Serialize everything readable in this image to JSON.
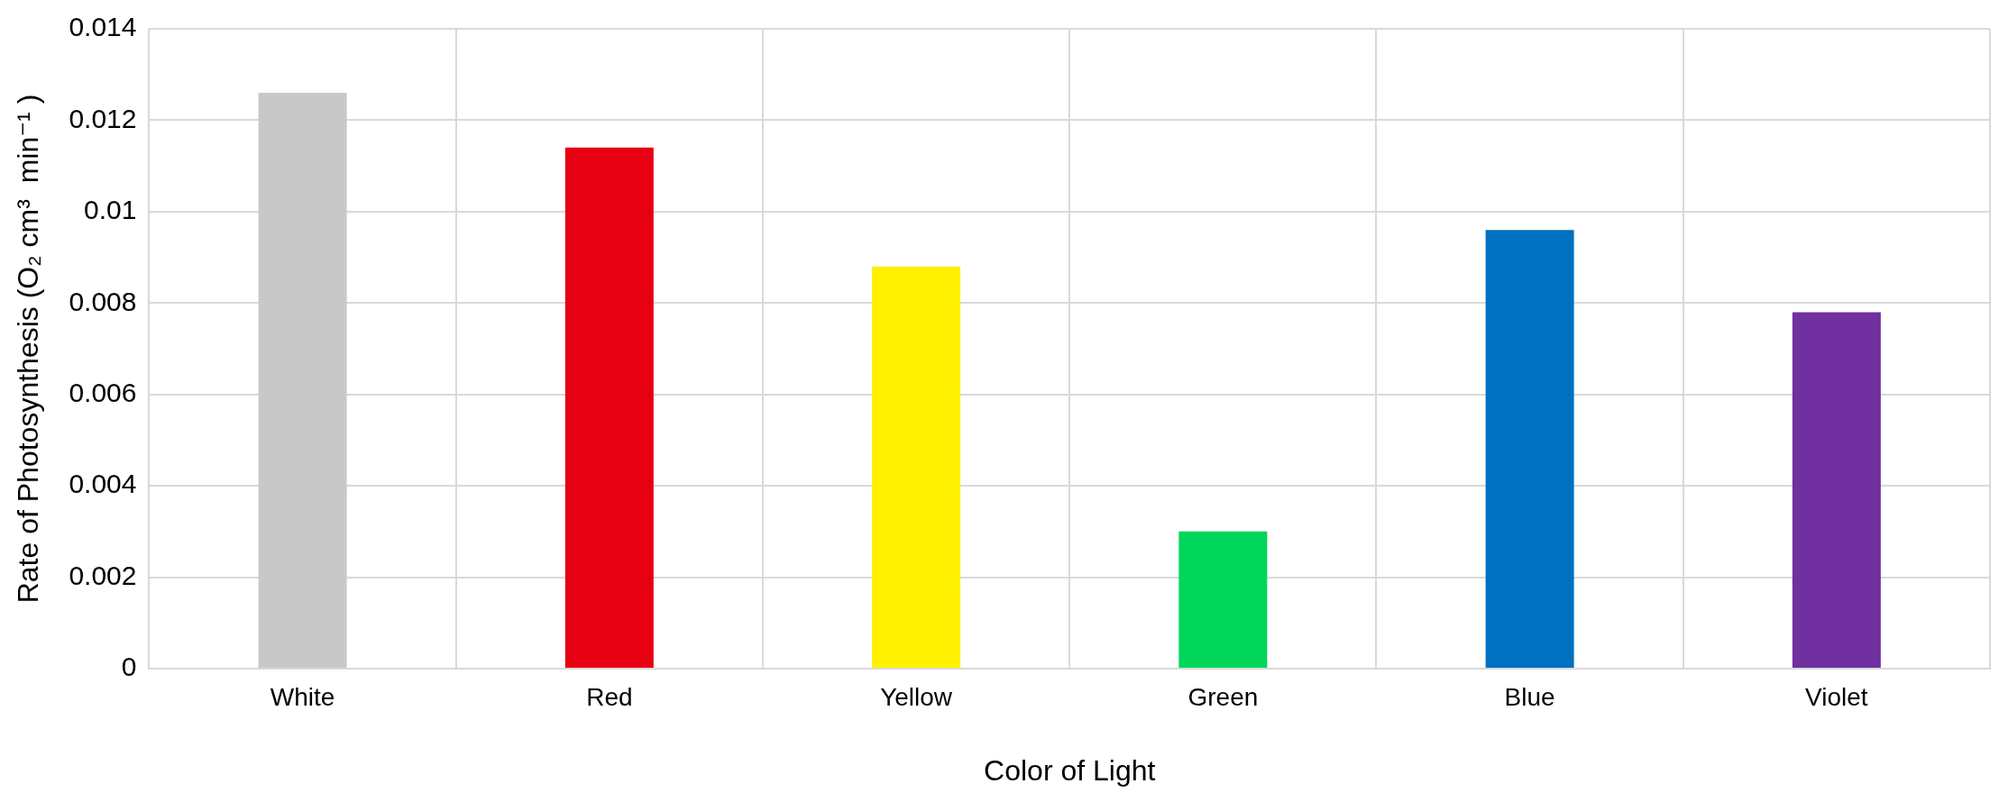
{
  "chart_data": {
    "type": "bar",
    "xlabel": "Color of Light",
    "ylabel": "Rate of Photosynthesis (O₂ cm³  min⁻¹ )",
    "categories": [
      "White",
      "Red",
      "Yellow",
      "Green",
      "Blue",
      "Violet"
    ],
    "values": [
      0.0126,
      0.0114,
      0.0088,
      0.003,
      0.0096,
      0.0078
    ],
    "colors": [
      "#c8c8c8",
      "#e60012",
      "#fff100",
      "#00d65a",
      "#0070c0",
      "#7030a0"
    ],
    "ylim": [
      0,
      0.014
    ],
    "yticks": [
      0,
      0.002,
      0.004,
      0.006,
      0.008,
      0.01,
      0.012,
      0.014
    ],
    "grid": true,
    "legend": false
  }
}
